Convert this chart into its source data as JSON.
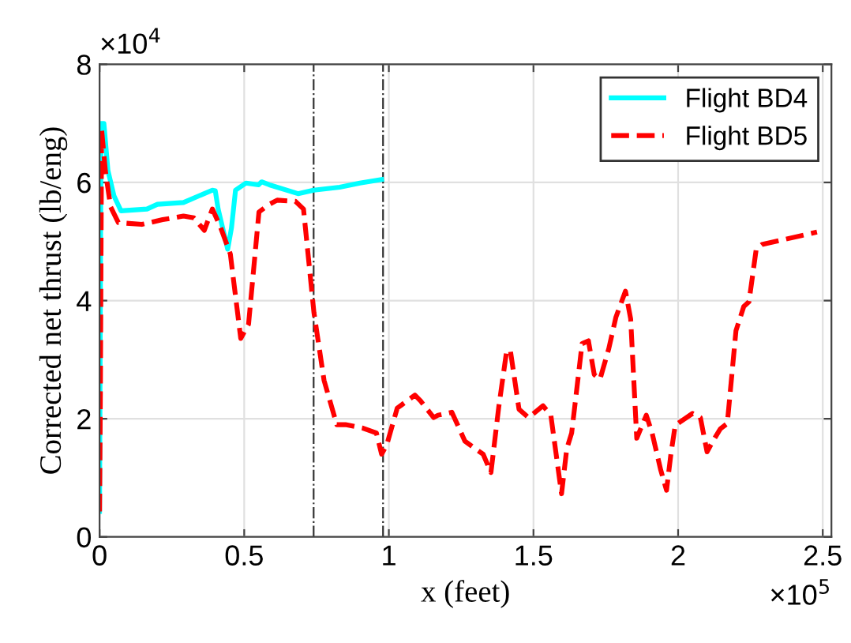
{
  "chart_data": {
    "type": "line",
    "xlabel": "x (feet)",
    "ylabel": "Corrected net thrust (lb/eng)",
    "annotations": [
      "×10$^{4}$",
      "×10$^{5}$"
    ],
    "xlim": [
      0,
      2.53
    ],
    "ylim": [
      0,
      8
    ],
    "xticks": [
      0,
      0.5,
      1,
      1.5,
      2,
      2.5
    ],
    "yticks": [
      0,
      2,
      4,
      6,
      8
    ],
    "grid": true,
    "legend": "top right",
    "ref_lines": [
      {
        "axis": "x",
        "value": 0.74,
        "label": null,
        "color": "#333333",
        "line_style": "dashdot"
      },
      {
        "axis": "x",
        "value": 0.98,
        "label": null,
        "color": "#333333",
        "line_style": "dashdot"
      }
    ],
    "series": [
      {
        "name": "Flight BD4",
        "color": "#00ffff",
        "line_style": "solid",
        "x": [
          0,
          0.005,
          0.015,
          0.029,
          0.05,
          0.074,
          0.164,
          0.2,
          0.29,
          0.39,
          0.4,
          0.41,
          0.443,
          0.456,
          0.47,
          0.506,
          0.55,
          0.56,
          0.587,
          0.686,
          0.74,
          0.83,
          0.9,
          0.975
        ],
        "values": [
          0.43,
          7.0,
          7.0,
          6.2,
          5.77,
          5.52,
          5.55,
          5.63,
          5.66,
          5.87,
          5.86,
          5.55,
          4.87,
          5.23,
          5.87,
          5.99,
          5.96,
          6.01,
          5.96,
          5.81,
          5.87,
          5.92,
          5.99,
          6.05
        ]
      },
      {
        "name": "Flight BD5",
        "color": "#ff0000",
        "line_style": "dashed",
        "x": [
          0,
          0.003,
          0.007,
          0.02,
          0.038,
          0.065,
          0.146,
          0.218,
          0.29,
          0.326,
          0.362,
          0.39,
          0.416,
          0.452,
          0.488,
          0.515,
          0.551,
          0.587,
          0.614,
          0.677,
          0.705,
          0.741,
          0.776,
          0.82,
          0.85,
          0.911,
          0.957,
          0.975,
          0.993,
          1.029,
          1.09,
          1.11,
          1.155,
          1.17,
          1.218,
          1.263,
          1.3,
          1.326,
          1.353,
          1.38,
          1.407,
          1.42,
          1.45,
          1.483,
          1.533,
          1.56,
          1.597,
          1.615,
          1.632,
          1.668,
          1.69,
          1.71,
          1.73,
          1.76,
          1.785,
          1.818,
          1.836,
          1.857,
          1.89,
          1.91,
          1.94,
          1.96,
          1.975,
          1.99,
          2.05,
          2.077,
          2.1,
          2.12,
          2.146,
          2.17,
          2.2,
          2.227,
          2.245,
          2.27,
          2.29,
          2.48
        ],
        "values": [
          0.43,
          2.57,
          6.9,
          6.2,
          5.59,
          5.32,
          5.29,
          5.37,
          5.43,
          5.4,
          5.19,
          5.55,
          5.27,
          4.79,
          3.36,
          3.6,
          5.5,
          5.63,
          5.7,
          5.68,
          5.55,
          3.8,
          2.65,
          1.9,
          1.9,
          1.84,
          1.76,
          1.4,
          1.56,
          2.18,
          2.4,
          2.3,
          2.02,
          2.06,
          2.11,
          1.62,
          1.49,
          1.4,
          1.09,
          2.2,
          3.14,
          3.16,
          2.16,
          2.02,
          2.22,
          2.06,
          0.73,
          1.49,
          1.76,
          3.27,
          3.32,
          2.75,
          2.67,
          3.18,
          3.72,
          4.16,
          3.69,
          1.67,
          2.06,
          1.76,
          1.13,
          0.79,
          1.4,
          1.89,
          2.09,
          2.02,
          1.44,
          1.62,
          1.83,
          1.92,
          3.49,
          3.9,
          3.98,
          4.87,
          4.95,
          5.16
        ]
      }
    ]
  }
}
